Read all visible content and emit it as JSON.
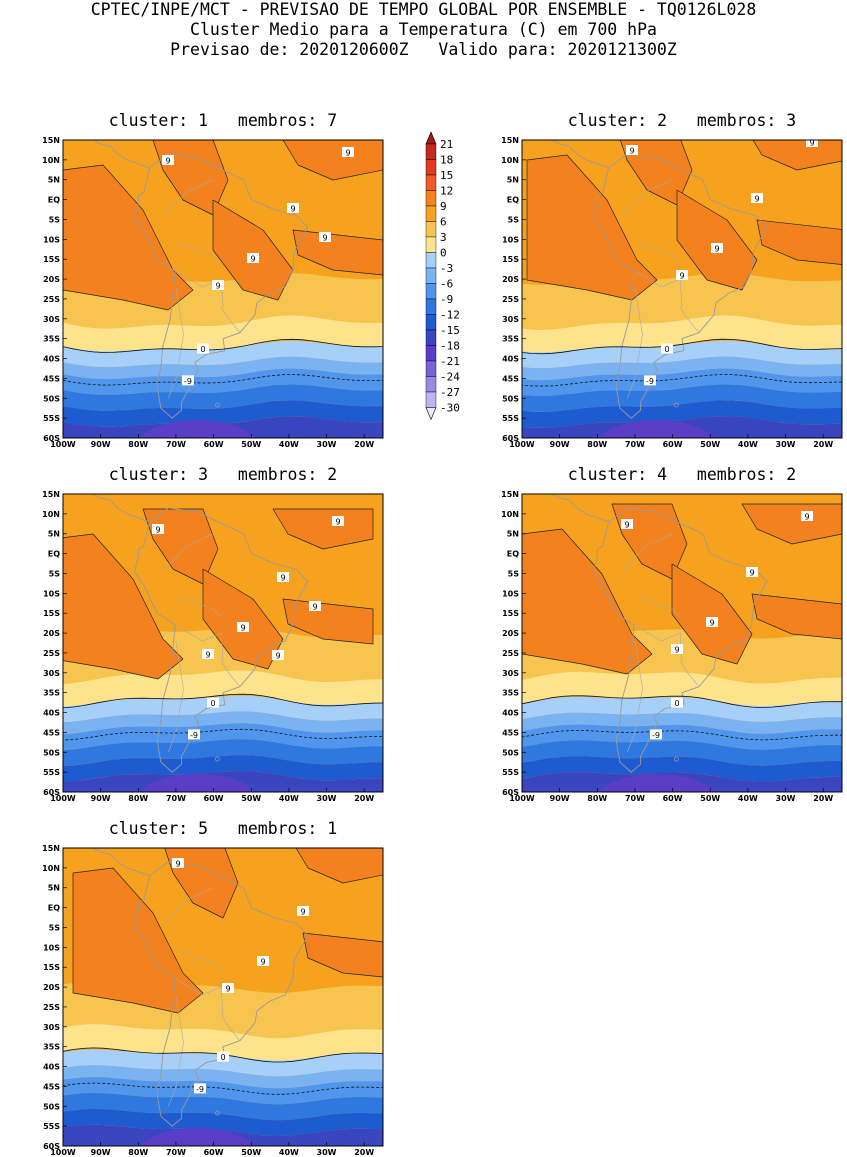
{
  "header": {
    "line1": "CPTEC/INPE/MCT - PREVISAO DE TEMPO GLOBAL POR ENSEMBLE - TQ0126L028",
    "line2": "Cluster Medio para a Temperatura (C) em 700 hPa",
    "line3": "Previsao de: 2020120600Z   Valido para: 2020121300Z"
  },
  "lat_labels": [
    "15N",
    "10N",
    "5N",
    "EQ",
    "5S",
    "10S",
    "15S",
    "20S",
    "25S",
    "30S",
    "35S",
    "40S",
    "45S",
    "50S",
    "55S",
    "60S"
  ],
  "lon_labels": [
    "100W",
    "90W",
    "80W",
    "70W",
    "60W",
    "50W",
    "40W",
    "30W",
    "20W"
  ],
  "colorbar": {
    "labels": [
      "21",
      "18",
      "15",
      "12",
      "9",
      "6",
      "3",
      "0",
      "-3",
      "-6",
      "-9",
      "-12",
      "-15",
      "-18",
      "-21",
      "-24",
      "-27",
      "-30"
    ],
    "colors": [
      "#a01818",
      "#c22a1e",
      "#e03a22",
      "#f05a28",
      "#f3821e",
      "#f6a21e",
      "#f8c450",
      "#fde48c",
      "#a6d0f8",
      "#7bb2f2",
      "#5096ec",
      "#2f78e0",
      "#1e5ad0",
      "#3a46c0",
      "#5a3ec8",
      "#7a62d8",
      "#9a8ae4",
      "#c0b4ee",
      "#ede8fa"
    ]
  },
  "panels": [
    {
      "title": "cluster: 1   membros: 7",
      "contour_labels": [
        "9",
        "9",
        "9",
        "9",
        "9",
        "9",
        "0",
        "-9"
      ]
    },
    {
      "title": "cluster: 2   membros: 3",
      "contour_labels": [
        "9",
        "9",
        "9",
        "9",
        "9",
        "0",
        "-9"
      ]
    },
    {
      "title": "cluster: 3   membros: 2",
      "contour_labels": [
        "9",
        "9",
        "9",
        "9",
        "9",
        "9",
        "9",
        "0",
        "-9"
      ]
    },
    {
      "title": "cluster: 4   membros: 2",
      "contour_labels": [
        "9",
        "9",
        "9",
        "9",
        "9",
        "0",
        "-9"
      ]
    },
    {
      "title": "cluster: 5   membros: 1",
      "contour_labels": [
        "9",
        "9",
        "9",
        "9",
        "0",
        "-9"
      ]
    }
  ]
}
